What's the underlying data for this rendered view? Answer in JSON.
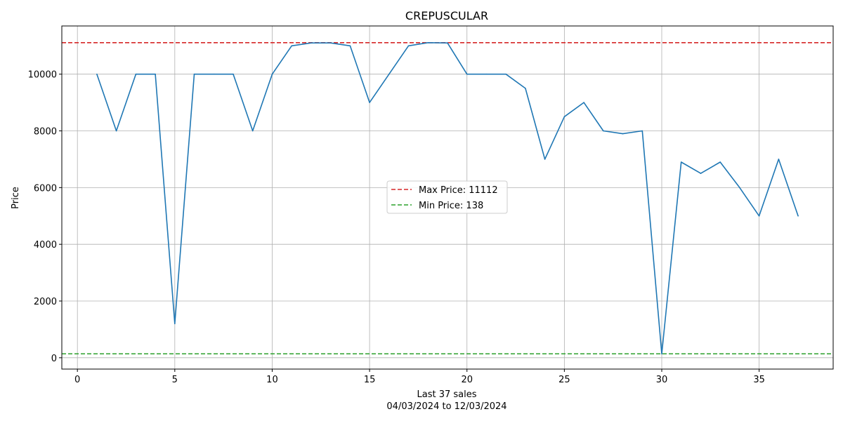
{
  "chart_data": {
    "type": "line",
    "title": "CREPUSCULAR",
    "xlabel": "Last 37 sales",
    "xlabel_sub": "04/03/2024 to 12/03/2024",
    "ylabel": "Price",
    "xlim": [
      -0.8,
      38.8
    ],
    "ylim": [
      -400,
      11700
    ],
    "x_ticks": [
      0,
      5,
      10,
      15,
      20,
      25,
      30,
      35
    ],
    "y_ticks": [
      0,
      2000,
      4000,
      6000,
      8000,
      10000
    ],
    "grid": true,
    "legend_position": "center",
    "series": [
      {
        "color": "#1f77b4",
        "x": [
          1,
          2,
          3,
          4,
          5,
          6,
          7,
          8,
          9,
          10,
          11,
          12,
          13,
          14,
          15,
          16,
          17,
          18,
          19,
          20,
          21,
          22,
          23,
          24,
          25,
          26,
          27,
          28,
          29,
          30,
          31,
          32,
          33,
          34,
          35,
          36,
          37
        ],
        "y": [
          10000,
          8000,
          10000,
          10000,
          1200,
          10000,
          10000,
          10000,
          8000,
          10000,
          11000,
          11100,
          11100,
          11000,
          9000,
          10000,
          11000,
          11112,
          11100,
          10000,
          10000,
          10000,
          9500,
          7000,
          8500,
          9000,
          8000,
          7900,
          8000,
          138,
          6900,
          6500,
          6900,
          6000,
          5000,
          7000,
          5000
        ]
      }
    ],
    "reference_lines": [
      {
        "name": "Max Price: 11112",
        "value": 11112,
        "color": "#d62728",
        "style": "dashed"
      },
      {
        "name": "Min Price: 138",
        "value": 138,
        "color": "#2ca02c",
        "style": "dashed"
      }
    ]
  }
}
